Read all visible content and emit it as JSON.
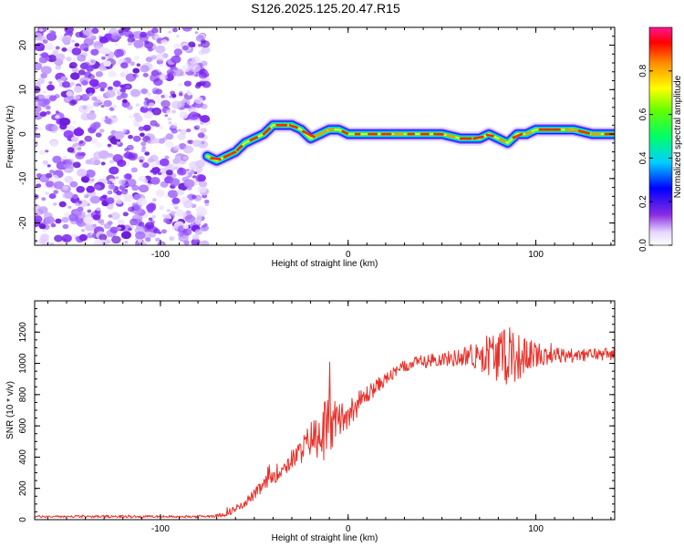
{
  "title": "S126.2025.125.20.47.R15",
  "chart_data": [
    {
      "type": "heatmap",
      "xlabel": "Height of straight line (km)",
      "ylabel": "Frequency (Hz)",
      "xlim": [
        -167,
        142
      ],
      "ylim": [
        -25,
        24
      ],
      "xticks": [
        -100,
        0,
        100
      ],
      "yticks": [
        -20,
        -10,
        0,
        10,
        20
      ],
      "colorbar": {
        "label": "Normalized spectral amplitude",
        "ticks": [
          0.0,
          0.2,
          0.4,
          0.6,
          0.8
        ],
        "range": [
          0,
          1
        ]
      },
      "noise_region_x": [
        -167,
        -75
      ],
      "ridge": {
        "x": [
          -75,
          -70,
          -65,
          -60,
          -55,
          -50,
          -45,
          -40,
          -35,
          -30,
          -25,
          -20,
          -15,
          -10,
          -5,
          0,
          10,
          20,
          30,
          40,
          50,
          60,
          70,
          75,
          80,
          85,
          90,
          95,
          100,
          110,
          120,
          130,
          142
        ],
        "y": [
          -5,
          -6,
          -5,
          -4,
          -2,
          -1,
          0,
          2,
          2,
          2,
          1,
          -1,
          0,
          1,
          1,
          0,
          0,
          0,
          0,
          0,
          0,
          -1,
          -1,
          0,
          -1,
          -2,
          0,
          0,
          1,
          1,
          1,
          0,
          0
        ],
        "peak_amplitude": 1.0
      }
    },
    {
      "type": "line",
      "xlabel": "Height of straight line (km)",
      "ylabel": "SNR (10 * v/v)",
      "xlim": [
        -167,
        142
      ],
      "ylim": [
        0,
        1400
      ],
      "xticks": [
        -100,
        0,
        100
      ],
      "yticks": [
        0,
        200,
        400,
        600,
        800,
        1000,
        1200
      ],
      "color": "#e8312a",
      "series": [
        {
          "x": [
            -167,
            -140,
            -120,
            -100,
            -90,
            -80,
            -70,
            -65,
            -60,
            -55,
            -50,
            -45,
            -40,
            -35,
            -30,
            -25,
            -20,
            -15,
            -10,
            -5,
            0,
            5,
            10,
            15,
            20,
            25,
            30,
            35,
            40,
            45,
            50,
            55,
            60,
            65,
            70,
            75,
            80,
            85,
            90,
            95,
            100,
            105,
            110,
            115,
            120,
            125,
            130,
            135,
            142
          ],
          "y": [
            20,
            20,
            20,
            20,
            20,
            20,
            25,
            40,
            70,
            110,
            160,
            220,
            280,
            330,
            380,
            440,
            520,
            560,
            600,
            640,
            680,
            740,
            800,
            850,
            900,
            940,
            980,
            1000,
            1010,
            1020,
            1030,
            1030,
            1040,
            1050,
            1060,
            1060,
            1050,
            1040,
            1040,
            1050,
            1060,
            1060,
            1050,
            1050,
            1050,
            1050,
            1060,
            1060,
            1060
          ],
          "noise_amplitude": [
            8,
            8,
            8,
            8,
            8,
            8,
            10,
            20,
            25,
            30,
            35,
            45,
            55,
            60,
            70,
            80,
            110,
            180,
            220,
            120,
            90,
            80,
            60,
            50,
            40,
            40,
            40,
            40,
            40,
            40,
            45,
            50,
            60,
            80,
            110,
            140,
            170,
            180,
            160,
            110,
            80,
            70,
            60,
            50,
            45,
            40,
            40,
            40,
            40
          ]
        }
      ]
    }
  ]
}
